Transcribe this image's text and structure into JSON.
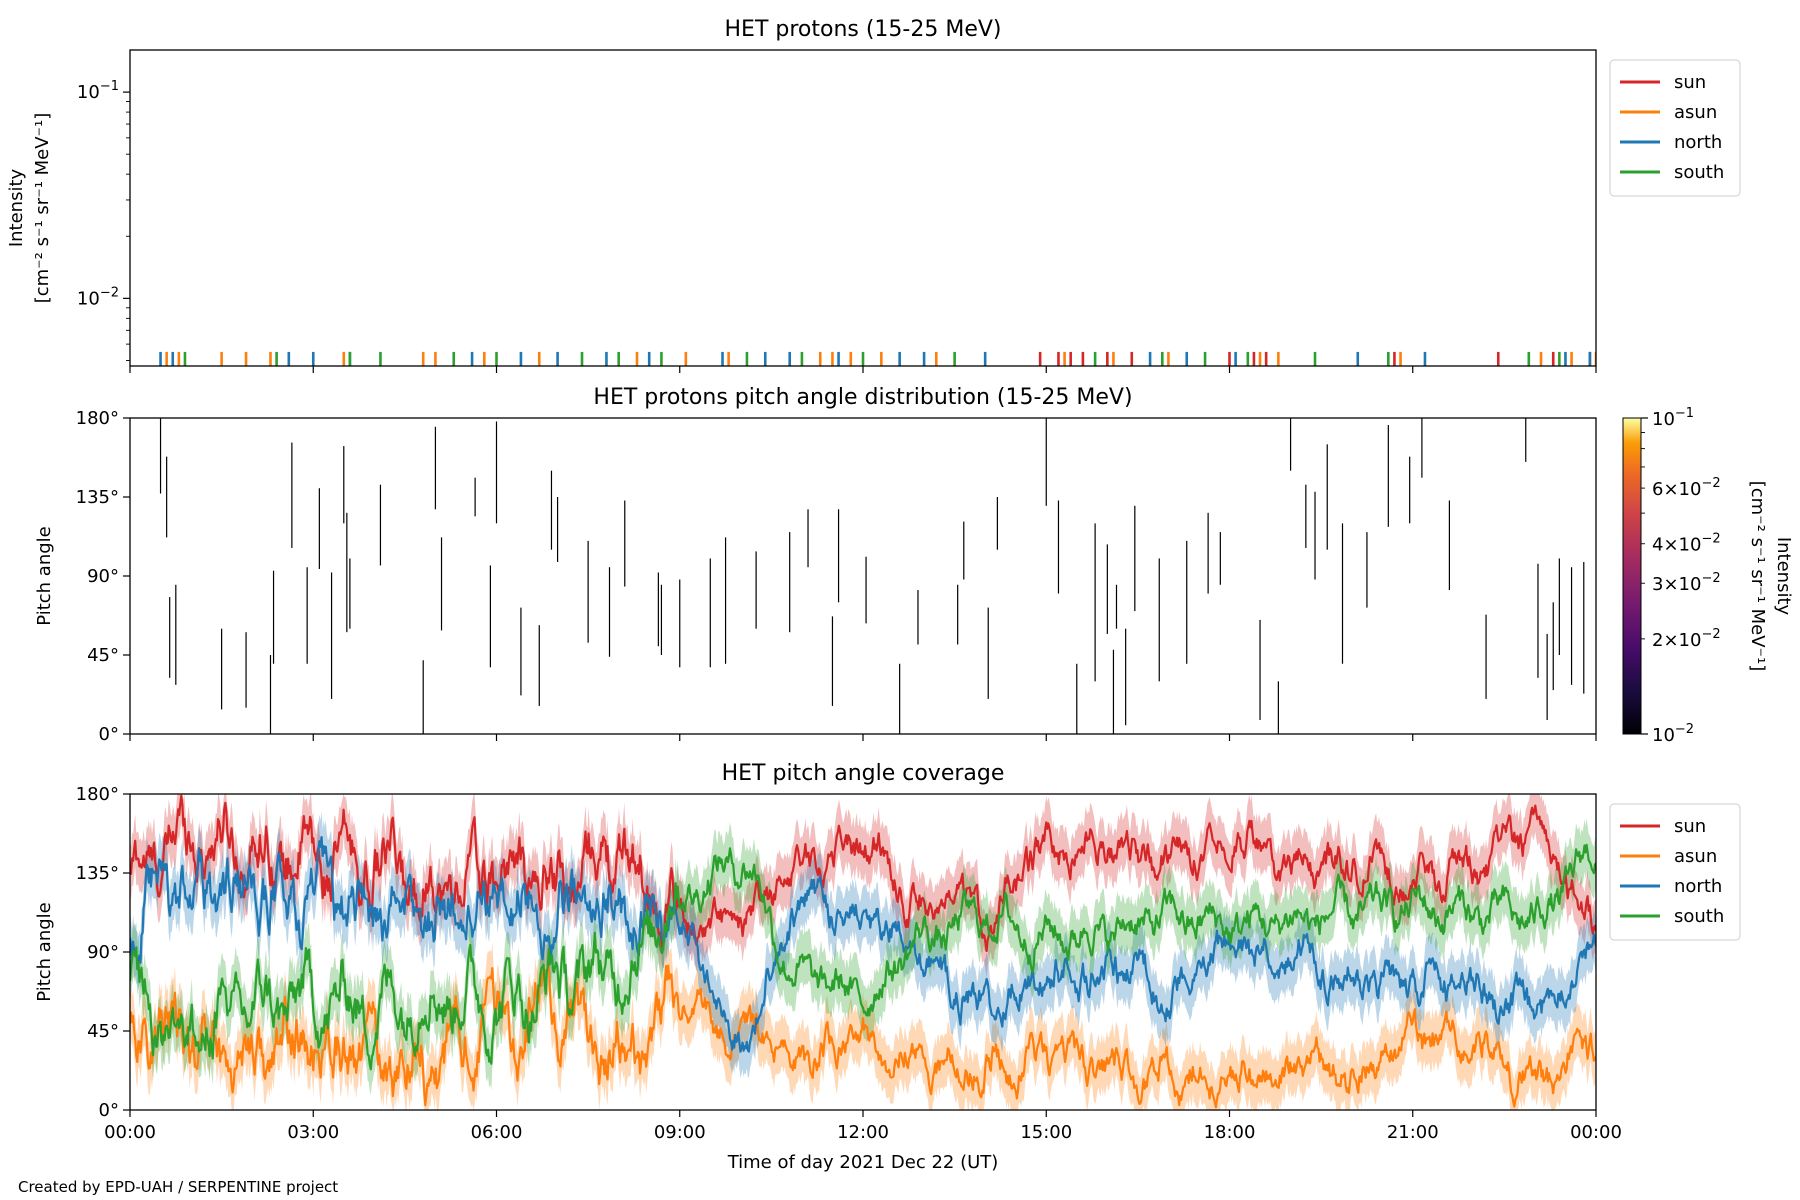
{
  "footer": "Created by EPD-UAH / SERPENTINE project",
  "xaxis": {
    "label": "Time of day 2021 Dec 22 (UT)",
    "ticks": [
      "00:00",
      "03:00",
      "06:00",
      "09:00",
      "12:00",
      "15:00",
      "18:00",
      "21:00",
      "00:00"
    ],
    "range_hours": [
      0,
      24
    ]
  },
  "chart_data": [
    {
      "type": "scatter",
      "title": "HET protons (15-25 MeV)",
      "ylabel_line1": "Intensity",
      "ylabel_line2": "[cm⁻² s⁻¹ sr⁻¹ MeV⁻¹]",
      "yscale": "log",
      "ylim": [
        0.0047,
        0.16
      ],
      "yticks": [
        {
          "value": 0.1,
          "base": "10",
          "exp": "−1"
        },
        {
          "value": 0.01,
          "base": "10",
          "exp": "−2"
        }
      ],
      "grid": false,
      "legend": "right",
      "series": [
        {
          "name": "sun",
          "color": "#d62728",
          "value": 0.0055,
          "x": [
            14.9,
            15.2,
            15.4,
            15.6,
            16.0,
            16.4,
            18.0,
            18.4,
            18.6,
            20.7,
            22.4,
            23.3,
            23.9
          ]
        },
        {
          "name": "asun",
          "color": "#ff7f0e",
          "value": 0.0055,
          "x": [
            0.6,
            0.8,
            1.5,
            1.9,
            2.3,
            3.5,
            4.8,
            5.0,
            5.8,
            6.7,
            8.3,
            9.1,
            9.8,
            11.3,
            11.5,
            11.8,
            12.3,
            13.2,
            15.3,
            16.1,
            17.0,
            18.5,
            18.8,
            20.8,
            23.1,
            23.6,
            24.0
          ]
        },
        {
          "name": "north",
          "color": "#1f77b4",
          "value": 0.0055,
          "x": [
            0.5,
            0.7,
            2.6,
            3.0,
            3.6,
            5.6,
            6.4,
            7.0,
            7.8,
            8.5,
            9.7,
            10.4,
            10.8,
            11.6,
            12.6,
            13.0,
            14.0,
            16.7,
            17.3,
            18.1,
            20.1,
            21.2,
            23.5,
            23.9
          ]
        },
        {
          "name": "south",
          "color": "#2ca02c",
          "value": 0.0055,
          "x": [
            0.9,
            2.4,
            3.6,
            4.1,
            5.3,
            6.0,
            7.4,
            8.0,
            8.7,
            10.1,
            11.0,
            12.0,
            13.5,
            15.8,
            16.9,
            17.6,
            18.3,
            19.4,
            20.6,
            22.9,
            23.4
          ]
        }
      ]
    },
    {
      "type": "heatmap",
      "title": "HET protons pitch angle distribution (15-25 MeV)",
      "ylabel": "Pitch angle",
      "ylim": [
        0,
        180
      ],
      "yticks": [
        "0°",
        "45°",
        "90°",
        "135°",
        "180°"
      ],
      "colorbar": {
        "label": "Intensity",
        "units": "[cm⁻² s⁻¹ sr⁻¹ MeV⁻¹]",
        "scale": "log",
        "range": [
          0.01,
          0.1
        ],
        "ticks_major": [
          {
            "value": 0.1,
            "base": "10",
            "exp": "−1"
          },
          {
            "value": 0.01,
            "base": "10",
            "exp": "−2"
          }
        ],
        "ticks_minor": [
          {
            "value": 0.06,
            "mant": "6",
            "base": "10",
            "exp": "−2"
          },
          {
            "value": 0.04,
            "mant": "4",
            "base": "10",
            "exp": "−2"
          },
          {
            "value": 0.03,
            "mant": "3",
            "base": "10",
            "exp": "−2"
          },
          {
            "value": 0.02,
            "mant": "2",
            "base": "10",
            "exp": "−2"
          }
        ],
        "colormap": "inferno"
      },
      "segments": [
        [
          0.5,
          137,
          180
        ],
        [
          0.6,
          112,
          158
        ],
        [
          0.65,
          32,
          78
        ],
        [
          0.75,
          28,
          85
        ],
        [
          1.5,
          14,
          60
        ],
        [
          1.9,
          15,
          58
        ],
        [
          2.3,
          0,
          45
        ],
        [
          2.35,
          40,
          93
        ],
        [
          2.65,
          106,
          166
        ],
        [
          2.9,
          40,
          95
        ],
        [
          3.1,
          94,
          140
        ],
        [
          3.3,
          20,
          92
        ],
        [
          3.5,
          120,
          164
        ],
        [
          3.55,
          58,
          126
        ],
        [
          3.6,
          60,
          100
        ],
        [
          4.1,
          96,
          142
        ],
        [
          4.8,
          0,
          42
        ],
        [
          5.0,
          128,
          175
        ],
        [
          5.1,
          59,
          112
        ],
        [
          5.65,
          124,
          146
        ],
        [
          5.9,
          38,
          96
        ],
        [
          6.0,
          120,
          178
        ],
        [
          6.4,
          22,
          72
        ],
        [
          6.7,
          16,
          62
        ],
        [
          6.9,
          105,
          150
        ],
        [
          7.0,
          98,
          135
        ],
        [
          7.5,
          52,
          110
        ],
        [
          7.85,
          44,
          95
        ],
        [
          8.1,
          84,
          133
        ],
        [
          8.65,
          50,
          92
        ],
        [
          8.7,
          45,
          85
        ],
        [
          9.0,
          38,
          88
        ],
        [
          9.5,
          38,
          100
        ],
        [
          9.75,
          40,
          112
        ],
        [
          10.25,
          60,
          104
        ],
        [
          10.8,
          58,
          115
        ],
        [
          11.1,
          95,
          128
        ],
        [
          11.5,
          16,
          67
        ],
        [
          11.6,
          75,
          128
        ],
        [
          12.05,
          63,
          101
        ],
        [
          12.6,
          0,
          40
        ],
        [
          12.9,
          51,
          82
        ],
        [
          13.55,
          51,
          85
        ],
        [
          13.65,
          88,
          121
        ],
        [
          14.05,
          20,
          72
        ],
        [
          14.2,
          105,
          135
        ],
        [
          15.0,
          130,
          180
        ],
        [
          15.2,
          80,
          133
        ],
        [
          15.5,
          0,
          40
        ],
        [
          15.8,
          30,
          120
        ],
        [
          16.0,
          57,
          108
        ],
        [
          16.1,
          0,
          48
        ],
        [
          16.15,
          60,
          85
        ],
        [
          16.3,
          5,
          60
        ],
        [
          16.45,
          70,
          130
        ],
        [
          16.85,
          30,
          100
        ],
        [
          17.3,
          40,
          110
        ],
        [
          17.65,
          80,
          126
        ],
        [
          17.85,
          85,
          115
        ],
        [
          18.5,
          8,
          65
        ],
        [
          18.8,
          0,
          30
        ],
        [
          19.0,
          150,
          181
        ],
        [
          19.25,
          106,
          142
        ],
        [
          19.4,
          88,
          138
        ],
        [
          19.6,
          105,
          165
        ],
        [
          19.85,
          40,
          120
        ],
        [
          20.25,
          72,
          115
        ],
        [
          20.6,
          118,
          176
        ],
        [
          20.95,
          120,
          158
        ],
        [
          21.15,
          146,
          181
        ],
        [
          21.6,
          82,
          133
        ],
        [
          22.2,
          20,
          68
        ],
        [
          22.85,
          155,
          180
        ],
        [
          23.05,
          32,
          97
        ],
        [
          23.2,
          8,
          57
        ],
        [
          23.3,
          25,
          75
        ],
        [
          23.4,
          45,
          100
        ],
        [
          23.6,
          28,
          95
        ],
        [
          23.8,
          23,
          98
        ]
      ]
    },
    {
      "type": "line",
      "title": "HET pitch angle coverage",
      "ylabel": "Pitch angle",
      "ylim": [
        0,
        180
      ],
      "yticks": [
        "0°",
        "45°",
        "90°",
        "135°",
        "180°"
      ],
      "legend": "right",
      "band": "±15°",
      "series": [
        {
          "name": "sun",
          "color": "#d62728",
          "x": [
            0,
            1,
            2,
            3,
            4,
            5,
            6,
            7,
            8,
            9,
            10,
            11,
            12,
            13,
            14,
            15,
            16,
            17,
            18,
            19,
            20,
            21,
            22,
            23,
            24
          ],
          "values": [
            132,
            158,
            150,
            142,
            138,
            128,
            134,
            130,
            145,
            108,
            105,
            140,
            152,
            118,
            110,
            148,
            152,
            142,
            160,
            136,
            142,
            133,
            138,
            158,
            108
          ]
        },
        {
          "name": "asun",
          "color": "#ff7f0e",
          "x": [
            0,
            1,
            2,
            3,
            4,
            5,
            6,
            7,
            8,
            9,
            10,
            11,
            12,
            13,
            14,
            15,
            16,
            17,
            18,
            19,
            20,
            21,
            22,
            23,
            24
          ],
          "values": [
            48,
            40,
            32,
            38,
            30,
            28,
            50,
            56,
            30,
            60,
            45,
            30,
            40,
            28,
            25,
            28,
            24,
            20,
            20,
            26,
            20,
            40,
            38,
            15,
            40
          ]
        },
        {
          "name": "north",
          "color": "#1f77b4",
          "x": [
            0,
            1,
            2,
            3,
            4,
            5,
            6,
            7,
            8,
            9,
            10,
            11,
            12,
            13,
            14,
            15,
            16,
            17,
            18,
            19,
            20,
            21,
            22,
            23,
            24
          ],
          "values": [
            108,
            128,
            120,
            118,
            115,
            112,
            118,
            110,
            120,
            102,
            42,
            118,
            112,
            82,
            62,
            75,
            80,
            70,
            90,
            92,
            76,
            70,
            70,
            55,
            95
          ]
        },
        {
          "name": "south",
          "color": "#2ca02c",
          "x": [
            0,
            1,
            2,
            3,
            4,
            5,
            6,
            7,
            8,
            9,
            10,
            11,
            12,
            13,
            14,
            15,
            16,
            17,
            18,
            19,
            20,
            21,
            22,
            23,
            24
          ],
          "values": [
            68,
            45,
            58,
            62,
            60,
            70,
            62,
            72,
            80,
            125,
            142,
            75,
            65,
            98,
            110,
            100,
            102,
            110,
            105,
            108,
            112,
            116,
            112,
            110,
            145
          ]
        }
      ]
    }
  ]
}
